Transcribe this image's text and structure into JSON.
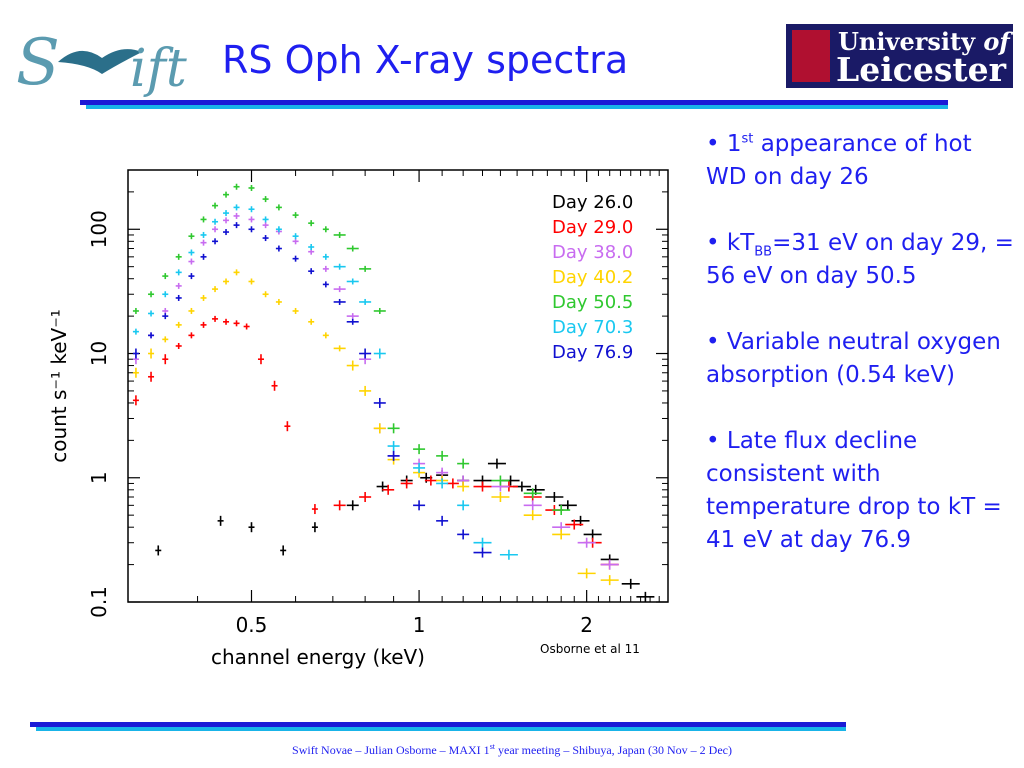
{
  "title": "RS Oph X-ray spectra",
  "logos": {
    "left": "Swift",
    "right_line1": "University",
    "right_line1_of": "of",
    "right_line2": "Leicester"
  },
  "bullets": [
    {
      "bullet": "•",
      "pre": "1",
      "sup": "st",
      "post": " appearance of hot WD on day 26"
    },
    {
      "bullet": "•",
      "pre": "kT",
      "sub": "BB",
      "post": "=31 eV on day 29, = 56 eV on day 50.5"
    },
    {
      "bullet": "•",
      "text": "Variable neutral oxygen absorption (0.54 keV)"
    },
    {
      "bullet": "•",
      "text": "Late flux decline consistent with temperature drop to kT = 41 eV at day 76.9"
    }
  ],
  "credit": "Osborne et al 11",
  "footer": {
    "pre": "Swift Novae – Julian Osborne – MAXI 1",
    "sup": "st",
    "post": " year meeting – Shibuya, Japan (30 Nov – 2 Dec)"
  },
  "chart_data": {
    "type": "scatter",
    "xlabel": "channel energy (keV)",
    "ylabel": "count s⁻¹ keV⁻¹",
    "x_scale": "log",
    "y_scale": "log",
    "xlim": [
      0.3,
      2.8
    ],
    "ylim": [
      0.1,
      300
    ],
    "x_ticks": [
      {
        "value": 0.5,
        "label": "0.5"
      },
      {
        "value": 1,
        "label": "1"
      },
      {
        "value": 2,
        "label": "2"
      }
    ],
    "y_ticks": [
      {
        "value": 0.1,
        "label": "0.1"
      },
      {
        "value": 1,
        "label": "1"
      },
      {
        "value": 10,
        "label": "10"
      },
      {
        "value": 100,
        "label": "100"
      }
    ],
    "legend_position": "top-right",
    "series": [
      {
        "name": "Day 26.0",
        "color": "#000000",
        "x": [
          0.34,
          0.44,
          0.5,
          0.57,
          0.65,
          0.76,
          0.86,
          0.95,
          1.03,
          1.1,
          1.2,
          1.3,
          1.38,
          1.46,
          1.53,
          1.62,
          1.75,
          1.85,
          1.95,
          2.05,
          2.2,
          2.4,
          2.55
        ],
        "y": [
          0.26,
          0.45,
          0.4,
          0.26,
          0.4,
          0.6,
          0.85,
          0.95,
          1.0,
          1.05,
          0.95,
          0.95,
          1.3,
          0.95,
          0.85,
          0.8,
          0.7,
          0.6,
          0.45,
          0.35,
          0.22,
          0.14,
          0.11
        ]
      },
      {
        "name": "Day 29.0",
        "color": "#ff0000",
        "x": [
          0.31,
          0.33,
          0.35,
          0.37,
          0.39,
          0.41,
          0.43,
          0.45,
          0.47,
          0.49,
          0.52,
          0.55,
          0.58,
          0.65,
          0.72,
          0.8,
          0.88,
          0.95,
          1.05,
          1.15,
          1.3,
          1.45,
          1.6,
          1.75,
          1.9,
          2.05,
          2.2
        ],
        "y": [
          4.2,
          6.5,
          9.0,
          11.5,
          14.0,
          17.0,
          19.0,
          18.0,
          17.5,
          16.5,
          9.0,
          5.5,
          2.6,
          0.56,
          0.6,
          0.7,
          0.8,
          0.9,
          0.95,
          0.9,
          0.85,
          0.85,
          0.7,
          0.55,
          0.42,
          0.3,
          0.2
        ]
      },
      {
        "name": "Day 38.0",
        "color": "#c86cf0",
        "x": [
          0.31,
          0.33,
          0.35,
          0.37,
          0.39,
          0.41,
          0.43,
          0.45,
          0.47,
          0.5,
          0.53,
          0.56,
          0.6,
          0.64,
          0.68,
          0.72,
          0.76,
          0.8,
          0.85,
          0.9,
          1.0,
          1.1,
          1.2,
          1.4,
          1.6,
          1.8,
          2.0,
          2.2
        ],
        "y": [
          9,
          14,
          22,
          35,
          55,
          78,
          100,
          118,
          128,
          120,
          108,
          96,
          80,
          66,
          48,
          33,
          20,
          9,
          2.5,
          1.5,
          1.3,
          1.1,
          0.95,
          0.85,
          0.6,
          0.4,
          0.3,
          0.2
        ]
      },
      {
        "name": "Day 40.2",
        "color": "#ffd400",
        "x": [
          0.31,
          0.33,
          0.35,
          0.37,
          0.39,
          0.41,
          0.43,
          0.45,
          0.47,
          0.5,
          0.53,
          0.56,
          0.6,
          0.64,
          0.68,
          0.72,
          0.76,
          0.8,
          0.85,
          0.9,
          1.0,
          1.1,
          1.2,
          1.4,
          1.6,
          1.8,
          2.0,
          2.2
        ],
        "y": [
          7,
          10,
          13,
          17,
          22,
          28,
          33,
          38,
          45,
          38,
          30,
          26,
          22,
          18,
          14,
          11,
          8,
          5,
          2.5,
          1.4,
          1.1,
          0.95,
          0.85,
          0.7,
          0.5,
          0.35,
          0.17,
          0.15
        ]
      },
      {
        "name": "Day 50.5",
        "color": "#2fc82f",
        "x": [
          0.31,
          0.33,
          0.35,
          0.37,
          0.39,
          0.41,
          0.43,
          0.45,
          0.47,
          0.5,
          0.53,
          0.56,
          0.6,
          0.64,
          0.68,
          0.72,
          0.76,
          0.8,
          0.85,
          0.9,
          1.0,
          1.1,
          1.2,
          1.4,
          1.6,
          1.8
        ],
        "y": [
          22,
          30,
          42,
          60,
          88,
          120,
          155,
          190,
          220,
          215,
          175,
          150,
          130,
          112,
          100,
          90,
          70,
          48,
          22,
          2.5,
          1.7,
          1.5,
          1.3,
          0.95,
          0.75,
          0.55
        ]
      },
      {
        "name": "Day 70.3",
        "color": "#19c8f0",
        "x": [
          0.31,
          0.33,
          0.35,
          0.37,
          0.39,
          0.41,
          0.43,
          0.45,
          0.47,
          0.5,
          0.53,
          0.56,
          0.6,
          0.64,
          0.68,
          0.72,
          0.76,
          0.8,
          0.85,
          0.9,
          1.0,
          1.1,
          1.2,
          1.3,
          1.45
        ],
        "y": [
          15,
          21,
          30,
          45,
          65,
          90,
          115,
          135,
          150,
          145,
          120,
          100,
          88,
          72,
          60,
          50,
          38,
          26,
          10,
          1.8,
          1.2,
          0.9,
          0.6,
          0.3,
          0.24
        ]
      },
      {
        "name": "Day 76.9",
        "color": "#1010d0",
        "x": [
          0.31,
          0.33,
          0.35,
          0.37,
          0.39,
          0.41,
          0.43,
          0.45,
          0.47,
          0.5,
          0.53,
          0.56,
          0.6,
          0.64,
          0.68,
          0.72,
          0.76,
          0.8,
          0.85,
          0.9,
          1.0,
          1.1,
          1.2,
          1.3
        ],
        "y": [
          10,
          14,
          20,
          28,
          42,
          60,
          80,
          95,
          108,
          100,
          85,
          70,
          58,
          46,
          36,
          26,
          18,
          10,
          4,
          1.5,
          0.6,
          0.45,
          0.35,
          0.25
        ]
      }
    ]
  }
}
